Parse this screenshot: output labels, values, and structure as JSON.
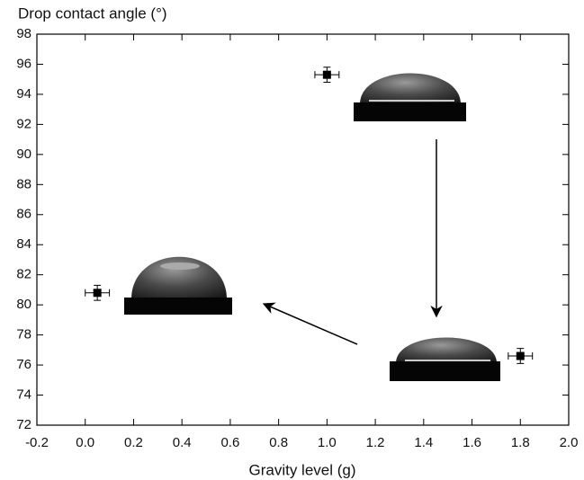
{
  "chart_data": {
    "type": "scatter",
    "title": "Drop contact angle (°)",
    "x_label": "Gravity level (g)",
    "series": [
      {
        "color": "#000000",
        "x": [
          0.05,
          1.0,
          1.8
        ],
        "values": [
          80.8,
          95.3,
          76.6
        ],
        "xerr": [
          0.05,
          0.05,
          0.05
        ],
        "yerr": [
          0.5,
          0.5,
          0.5
        ]
      }
    ],
    "xlim": [
      -0.2,
      2.0
    ],
    "xticks": [
      -0.2,
      {
        "value": 0,
        "label": "0.0"
      },
      0.2,
      0.4,
      0.6,
      0.8,
      {
        "value": 1,
        "label": "1.0"
      },
      1.2,
      1.4,
      1.6,
      1.8,
      {
        "value": 2,
        "label": "2.0"
      }
    ],
    "ylim": [
      72,
      98
    ],
    "yticks": [
      72,
      74,
      76,
      78,
      80,
      82,
      84,
      86,
      88,
      90,
      92,
      94,
      96,
      98
    ]
  }
}
